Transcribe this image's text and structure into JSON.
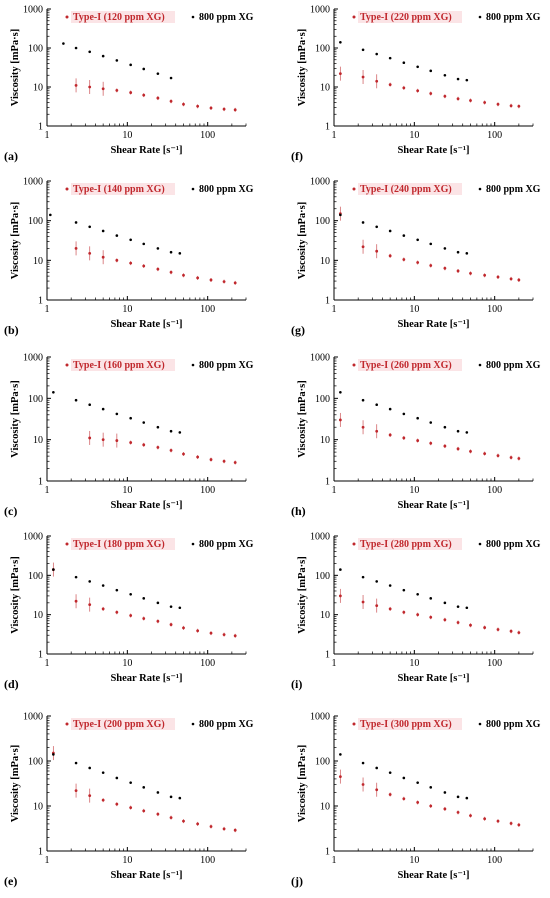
{
  "colors": {
    "type_i": "#c0282d",
    "xg800": "#000000",
    "axis": "#000000",
    "legend_bg": "#fbe4e6"
  },
  "axes": {
    "xlabel": "Shear Rate [s⁻¹]",
    "ylabel": "Viscosity [mPa·s]",
    "xscale": "log",
    "yscale": "log",
    "xlim": [
      1,
      300
    ],
    "ylim": [
      1,
      1000
    ],
    "xticks": [
      "1",
      "10",
      "100"
    ],
    "yticks": [
      "1",
      "10",
      "100",
      "1000"
    ]
  },
  "chart_data": [
    {
      "type": "scatter",
      "panel": "(a)",
      "legend_position": "top",
      "series": [
        {
          "name": "Type-I (120 ppm XG)",
          "x": [
            2.3,
            3.4,
            5.0,
            7.4,
            11,
            16,
            24,
            35,
            50,
            75,
            110,
            160,
            220
          ],
          "y": [
            11,
            10,
            9.0,
            8.2,
            7.2,
            6.2,
            5.2,
            4.3,
            3.6,
            3.2,
            2.9,
            2.7,
            2.6
          ]
        },
        {
          "name": "800 ppm XG",
          "x": [
            1.6,
            2.3,
            3.4,
            5.0,
            7.4,
            11,
            16,
            24,
            35
          ],
          "y": [
            130,
            100,
            80,
            62,
            48,
            37,
            29,
            22,
            17
          ]
        }
      ]
    },
    {
      "type": "scatter",
      "panel": "(f)",
      "legend_position": "top",
      "series": [
        {
          "name": "Type-I (220 ppm XG)",
          "x": [
            1.2,
            2.3,
            3.4,
            5.0,
            7.4,
            11,
            16,
            24,
            35,
            50,
            75,
            110,
            160,
            200
          ],
          "y": [
            22,
            18,
            14,
            11.5,
            9.5,
            8.0,
            6.8,
            5.8,
            5.0,
            4.5,
            4.0,
            3.6,
            3.3,
            3.2
          ]
        },
        {
          "name": "800 ppm XG",
          "x": [
            1.2,
            2.3,
            3.4,
            5.0,
            7.4,
            11,
            16,
            24,
            35,
            45
          ],
          "y": [
            140,
            90,
            70,
            55,
            42,
            33,
            26,
            20,
            16,
            15
          ]
        }
      ]
    },
    {
      "type": "scatter",
      "panel": "(b)",
      "legend_position": "top",
      "series": [
        {
          "name": "Type-I (140 ppm XG)",
          "x": [
            2.3,
            3.4,
            5.0,
            7.4,
            11,
            16,
            24,
            35,
            50,
            75,
            110,
            160,
            220
          ],
          "y": [
            20,
            15,
            12,
            10,
            8.5,
            7.2,
            6.0,
            5.0,
            4.2,
            3.6,
            3.2,
            2.9,
            2.7
          ]
        },
        {
          "name": "800 ppm XG",
          "x": [
            1.1,
            2.3,
            3.4,
            5.0,
            7.4,
            11,
            16,
            24,
            35,
            45
          ],
          "y": [
            140,
            90,
            70,
            55,
            42,
            33,
            26,
            20,
            16,
            15
          ]
        }
      ]
    },
    {
      "type": "scatter",
      "panel": "(g)",
      "legend_position": "top",
      "series": [
        {
          "name": "Type-I (240 ppm XG)",
          "x": [
            1.2,
            2.3,
            3.4,
            5.0,
            7.4,
            11,
            16,
            24,
            35,
            50,
            75,
            110,
            160,
            200
          ],
          "y": [
            150,
            22,
            17,
            13,
            10.5,
            8.8,
            7.4,
            6.3,
            5.4,
            4.7,
            4.2,
            3.8,
            3.4,
            3.2
          ]
        },
        {
          "name": "800 ppm XG",
          "x": [
            1.2,
            2.3,
            3.4,
            5.0,
            7.4,
            11,
            16,
            24,
            35,
            45
          ],
          "y": [
            140,
            90,
            70,
            55,
            42,
            33,
            26,
            20,
            16,
            15
          ]
        }
      ]
    },
    {
      "type": "scatter",
      "panel": "(c)",
      "legend_position": "top",
      "series": [
        {
          "name": "Type-I (160 ppm XG)",
          "x": [
            3.4,
            5.0,
            7.4,
            11,
            16,
            24,
            35,
            50,
            75,
            110,
            160,
            220
          ],
          "y": [
            11,
            10,
            9.5,
            8.5,
            7.5,
            6.5,
            5.5,
            4.5,
            3.8,
            3.3,
            3.0,
            2.8
          ]
        },
        {
          "name": "800 ppm XG",
          "x": [
            1.2,
            2.3,
            3.4,
            5.0,
            7.4,
            11,
            16,
            24,
            35,
            45
          ],
          "y": [
            140,
            90,
            70,
            55,
            42,
            33,
            26,
            20,
            16,
            15
          ]
        }
      ]
    },
    {
      "type": "scatter",
      "panel": "(h)",
      "legend_position": "top",
      "series": [
        {
          "name": "Type-I (260 ppm XG)",
          "x": [
            1.2,
            2.3,
            3.4,
            5.0,
            7.4,
            11,
            16,
            24,
            35,
            50,
            75,
            110,
            160,
            200
          ],
          "y": [
            30,
            20,
            16,
            13,
            11,
            9.5,
            8.2,
            7.0,
            6.0,
            5.2,
            4.6,
            4.1,
            3.7,
            3.5
          ]
        },
        {
          "name": "800 ppm XG",
          "x": [
            1.2,
            2.3,
            3.4,
            5.0,
            7.4,
            11,
            16,
            24,
            35,
            45
          ],
          "y": [
            140,
            90,
            70,
            55,
            42,
            33,
            26,
            20,
            16,
            15
          ]
        }
      ]
    },
    {
      "type": "scatter",
      "panel": "(d)",
      "legend_position": "top",
      "series": [
        {
          "name": "Type-I (180 ppm XG)",
          "x": [
            1.2,
            2.3,
            3.4,
            5.0,
            7.4,
            11,
            16,
            24,
            35,
            50,
            75,
            110,
            160,
            220
          ],
          "y": [
            140,
            22,
            18,
            14,
            11.5,
            9.5,
            8.0,
            6.8,
            5.6,
            4.6,
            3.9,
            3.4,
            3.1,
            2.9
          ]
        },
        {
          "name": "800 ppm XG",
          "x": [
            1.2,
            2.3,
            3.4,
            5.0,
            7.4,
            11,
            16,
            24,
            35,
            45
          ],
          "y": [
            140,
            90,
            70,
            55,
            42,
            33,
            26,
            20,
            16,
            15
          ]
        }
      ]
    },
    {
      "type": "scatter",
      "panel": "(i)",
      "legend_position": "top",
      "series": [
        {
          "name": "Type-I (280 ppm XG)",
          "x": [
            1.2,
            2.3,
            3.4,
            5.0,
            7.4,
            11,
            16,
            24,
            35,
            50,
            75,
            110,
            160,
            200
          ],
          "y": [
            30,
            21,
            17,
            14,
            11.5,
            10,
            8.6,
            7.4,
            6.3,
            5.4,
            4.7,
            4.2,
            3.8,
            3.5
          ]
        },
        {
          "name": "800 ppm XG",
          "x": [
            1.2,
            2.3,
            3.4,
            5.0,
            7.4,
            11,
            16,
            24,
            35,
            45
          ],
          "y": [
            140,
            90,
            70,
            55,
            42,
            33,
            26,
            20,
            16,
            15
          ]
        }
      ]
    },
    {
      "type": "scatter",
      "panel": "(e)",
      "legend_position": "top",
      "series": [
        {
          "name": "Type-I (200 ppm XG)",
          "x": [
            1.2,
            2.3,
            3.4,
            5.0,
            7.4,
            11,
            16,
            24,
            35,
            50,
            75,
            110,
            160,
            220
          ],
          "y": [
            150,
            22,
            17,
            13.5,
            11,
            9.2,
            7.8,
            6.6,
            5.5,
            4.6,
            4.0,
            3.5,
            3.1,
            2.9
          ]
        },
        {
          "name": "800 ppm XG",
          "x": [
            1.2,
            2.3,
            3.4,
            5.0,
            7.4,
            11,
            16,
            24,
            35,
            45
          ],
          "y": [
            140,
            90,
            70,
            55,
            42,
            33,
            26,
            20,
            16,
            15
          ]
        }
      ]
    },
    {
      "type": "scatter",
      "panel": "(j)",
      "legend_position": "top",
      "series": [
        {
          "name": "Type-I (300 ppm XG)",
          "x": [
            1.2,
            2.3,
            3.4,
            5.0,
            7.4,
            11,
            16,
            24,
            35,
            50,
            75,
            110,
            160,
            200
          ],
          "y": [
            45,
            30,
            23,
            18,
            14.5,
            12,
            10,
            8.6,
            7.2,
            6.1,
            5.2,
            4.6,
            4.1,
            3.8
          ]
        },
        {
          "name": "800 ppm XG",
          "x": [
            1.2,
            2.3,
            3.4,
            5.0,
            7.4,
            11,
            16,
            24,
            35,
            45
          ],
          "y": [
            140,
            90,
            70,
            55,
            42,
            33,
            26,
            20,
            16,
            15
          ]
        }
      ]
    }
  ]
}
